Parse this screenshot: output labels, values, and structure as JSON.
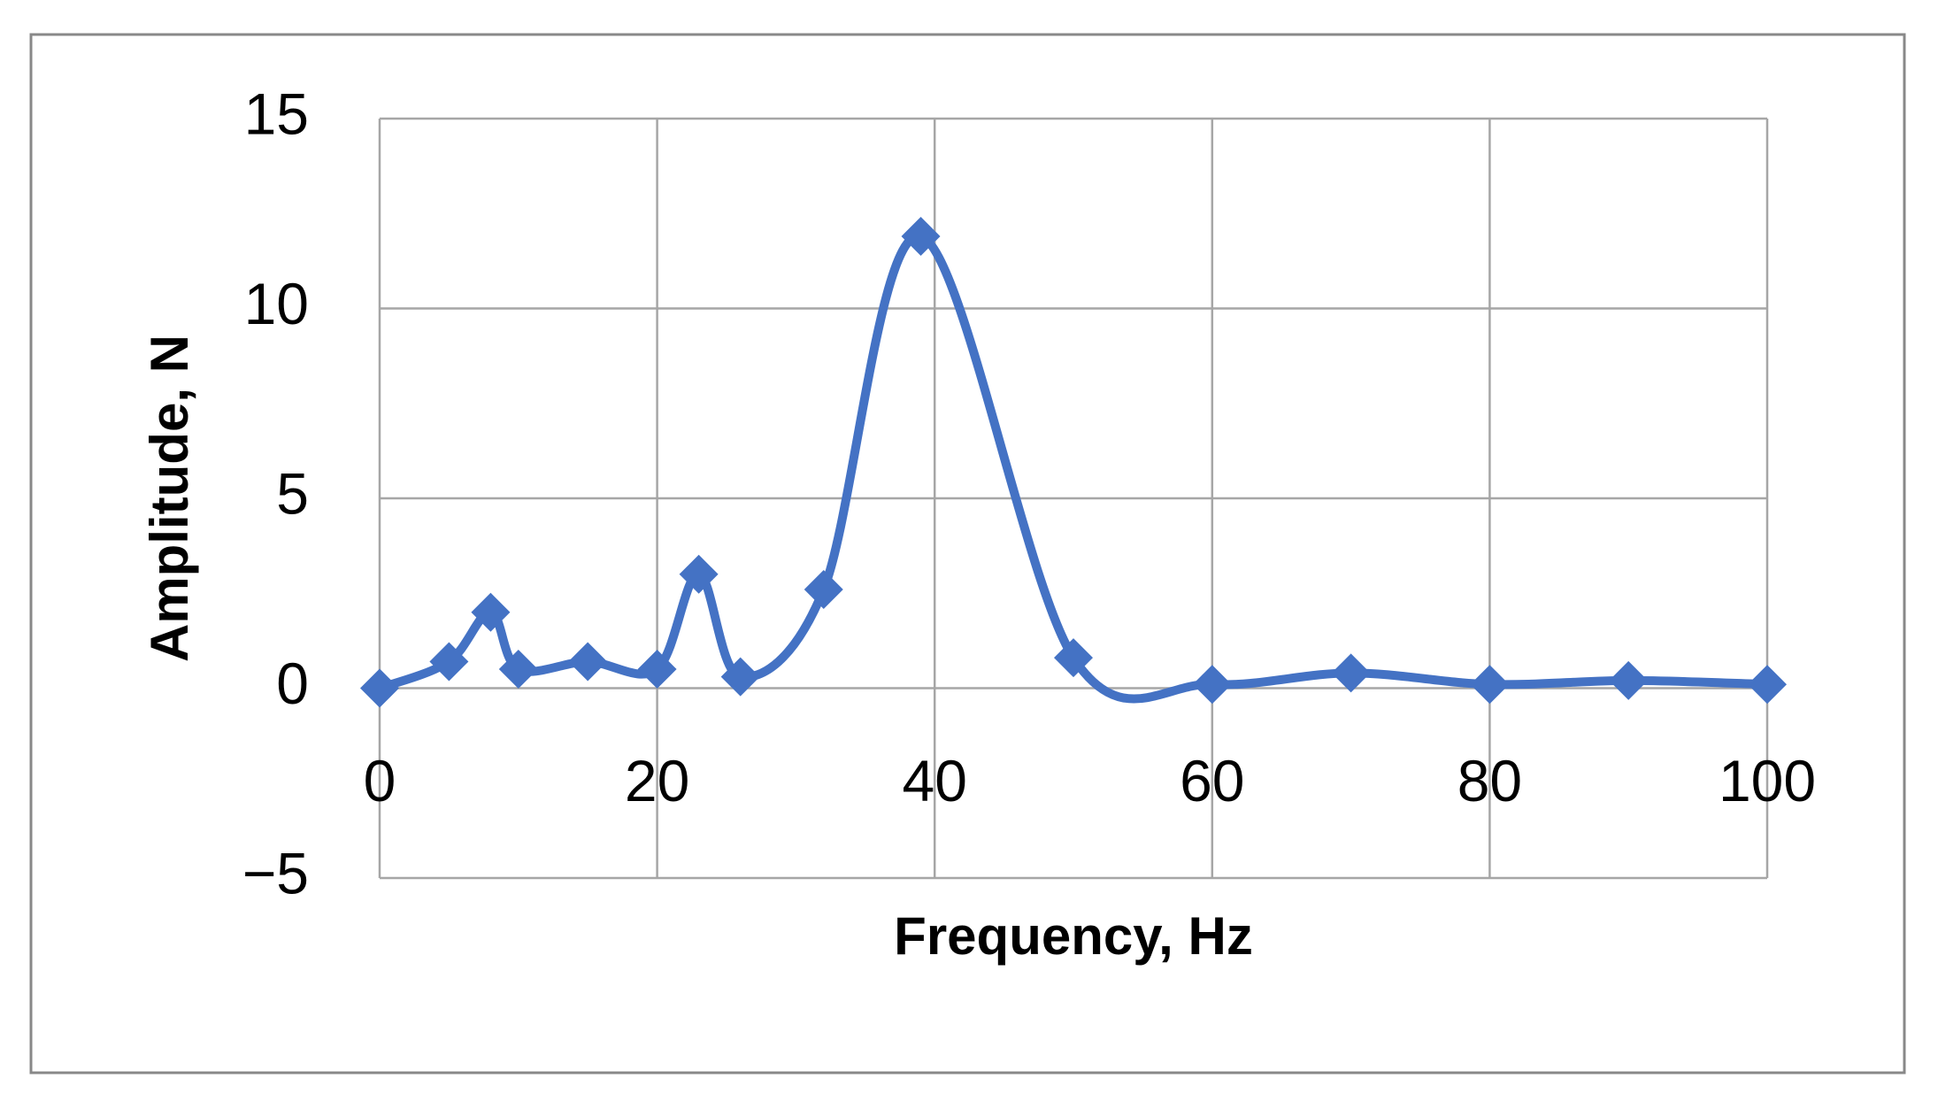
{
  "chart_data": {
    "type": "line",
    "x_label": "Frequency, Hz",
    "y_label": "Amplitude, N",
    "x": [
      0,
      5,
      8,
      10,
      15,
      20,
      23,
      26,
      32,
      39,
      50,
      60,
      70,
      80,
      90,
      100
    ],
    "series": [
      {
        "color": "#4472c4",
        "values": [
          0,
          0.7,
          2,
          0.5,
          0.7,
          0.5,
          3,
          0.3,
          2.6,
          11.9,
          0.8,
          0.1,
          0.4,
          0.1,
          0.2,
          0.1
        ]
      }
    ],
    "xlim": [
      0,
      100
    ],
    "xticks": [
      0,
      20,
      40,
      60,
      80,
      100
    ],
    "ylim": [
      -5,
      15
    ],
    "yticks": [
      {
        "value": -5,
        "label": "−5"
      },
      0,
      5,
      10,
      15
    ],
    "grid": true,
    "smooth": true,
    "marker": "diamond"
  }
}
